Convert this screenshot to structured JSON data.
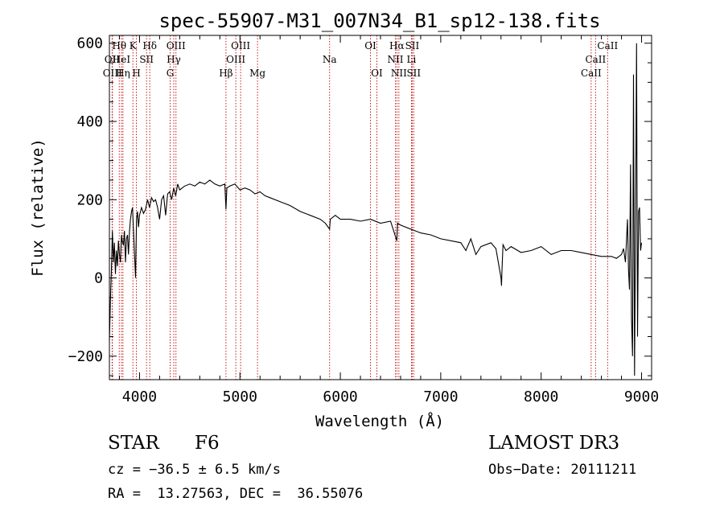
{
  "chart_data": {
    "type": "line",
    "title": "spec-55907-M31_007N34_B1_sp12-138.fits",
    "xlabel": "Wavelength (Å)",
    "ylabel": "Flux (relative)",
    "xlim": [
      3700,
      9100
    ],
    "ylim": [
      -260,
      620
    ],
    "xticks": [
      4000,
      5000,
      6000,
      7000,
      8000,
      9000
    ],
    "yticks": [
      -200,
      0,
      200,
      400,
      600
    ],
    "series": [
      {
        "name": "spectrum",
        "x": [
          3700,
          3710,
          3720,
          3730,
          3740,
          3750,
          3760,
          3770,
          3780,
          3790,
          3800,
          3810,
          3820,
          3830,
          3840,
          3850,
          3860,
          3870,
          3880,
          3890,
          3900,
          3910,
          3920,
          3930,
          3940,
          3950,
          3960,
          3970,
          3980,
          3990,
          4000,
          4020,
          4040,
          4060,
          4080,
          4100,
          4120,
          4140,
          4160,
          4180,
          4200,
          4220,
          4240,
          4260,
          4280,
          4300,
          4320,
          4340,
          4360,
          4380,
          4400,
          4450,
          4500,
          4550,
          4600,
          4650,
          4700,
          4750,
          4800,
          4850,
          4861,
          4870,
          4900,
          4950,
          5000,
          5050,
          5100,
          5150,
          5200,
          5250,
          5300,
          5400,
          5500,
          5600,
          5700,
          5800,
          5850,
          5893,
          5900,
          5950,
          6000,
          6100,
          6200,
          6300,
          6400,
          6500,
          6563,
          6570,
          6600,
          6700,
          6800,
          6900,
          7000,
          7100,
          7200,
          7250,
          7300,
          7350,
          7400,
          7500,
          7550,
          7600,
          7605,
          7610,
          7620,
          7650,
          7700,
          7800,
          7900,
          8000,
          8100,
          8200,
          8300,
          8400,
          8500,
          8600,
          8700,
          8750,
          8800,
          8820,
          8840,
          8860,
          8870,
          8880,
          8890,
          8900,
          8910,
          8920,
          8930,
          8940,
          8950,
          8960,
          8970,
          8980,
          8990,
          9000
        ],
        "values": [
          -160,
          -60,
          20,
          120,
          40,
          90,
          10,
          70,
          30,
          95,
          60,
          40,
          110,
          90,
          85,
          120,
          40,
          100,
          110,
          60,
          120,
          150,
          170,
          180,
          120,
          60,
          0,
          150,
          170,
          130,
          160,
          180,
          165,
          175,
          200,
          180,
          205,
          195,
          200,
          180,
          150,
          200,
          210,
          160,
          215,
          220,
          200,
          230,
          210,
          240,
          225,
          235,
          240,
          235,
          245,
          240,
          250,
          240,
          235,
          240,
          175,
          230,
          235,
          240,
          225,
          230,
          225,
          215,
          220,
          210,
          205,
          195,
          185,
          170,
          160,
          150,
          140,
          125,
          150,
          160,
          150,
          150,
          145,
          150,
          140,
          145,
          95,
          140,
          135,
          125,
          115,
          110,
          100,
          95,
          90,
          70,
          100,
          60,
          80,
          90,
          75,
          0,
          -20,
          20,
          85,
          70,
          80,
          65,
          70,
          80,
          60,
          70,
          70,
          65,
          60,
          55,
          55,
          50,
          60,
          75,
          40,
          150,
          20,
          -30,
          290,
          -100,
          -200,
          520,
          -250,
          120,
          600,
          -150,
          170,
          180,
          70,
          90
        ]
      }
    ],
    "lines": [
      {
        "label": "Hθ",
        "x": 3798,
        "row": 0
      },
      {
        "label": "OII",
        "x": 3727,
        "row": 1
      },
      {
        "label": "OIII",
        "x": 3730,
        "row": 2
      },
      {
        "label": "HeI",
        "x": 3820,
        "row": 1
      },
      {
        "label": "Hη",
        "x": 3835,
        "row": 2
      },
      {
        "label": "K",
        "x": 3934,
        "row": 0
      },
      {
        "label": "H",
        "x": 3969,
        "row": 2
      },
      {
        "label": "SII",
        "x": 4070,
        "row": 1
      },
      {
        "label": "Hδ",
        "x": 4102,
        "row": 0
      },
      {
        "label": "OIII",
        "x": 4363,
        "row": 0
      },
      {
        "label": "Hγ",
        "x": 4341,
        "row": 1
      },
      {
        "label": "G",
        "x": 4305,
        "row": 2
      },
      {
        "label": "Hβ",
        "x": 4861,
        "row": 2
      },
      {
        "label": "OIII",
        "x": 5007,
        "row": 0
      },
      {
        "label": "OIII",
        "x": 4959,
        "row": 1
      },
      {
        "label": "Mg",
        "x": 5175,
        "row": 2
      },
      {
        "label": "Na",
        "x": 5893,
        "row": 1
      },
      {
        "label": "OI",
        "x": 6300,
        "row": 0
      },
      {
        "label": "OI",
        "x": 6364,
        "row": 2
      },
      {
        "label": "Hα",
        "x": 6563,
        "row": 0
      },
      {
        "label": "NII",
        "x": 6548,
        "row": 1
      },
      {
        "label": "NII",
        "x": 6583,
        "row": 2
      },
      {
        "label": "SII",
        "x": 6716,
        "row": 0
      },
      {
        "label": "Li",
        "x": 6708,
        "row": 1
      },
      {
        "label": "SII",
        "x": 6731,
        "row": 2
      },
      {
        "label": "CaII",
        "x": 8662,
        "row": 0
      },
      {
        "label": "CaII",
        "x": 8542,
        "row": 1
      },
      {
        "label": "CaII",
        "x": 8498,
        "row": 2
      }
    ]
  },
  "info": {
    "class_label": "STAR",
    "subclass": "F6",
    "survey": "LAMOST DR3",
    "cz": "cz = −36.5 ± 6.5 km/s",
    "obs_date": "Obs−Date: 20111211",
    "coords": "RA =  13.27563, DEC =  36.55076"
  }
}
